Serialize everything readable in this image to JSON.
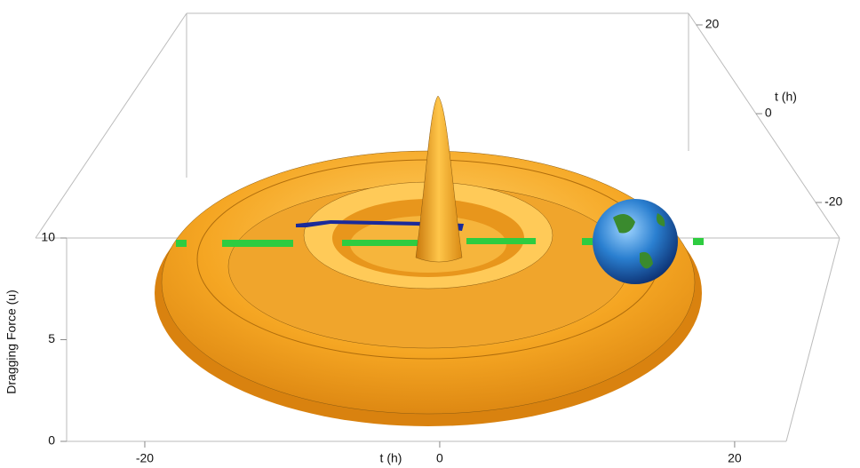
{
  "chart_data": {
    "type": "surface3d",
    "x_label": "t (h)",
    "y_label": "t (h)",
    "z_label": "Dragging Force (u)",
    "xlim": [
      -25.3,
      23.5
    ],
    "xticks": [
      -20,
      0,
      20
    ],
    "ylim": [
      -28,
      22.6
    ],
    "yticks": [
      -20,
      0,
      20
    ],
    "zlim": [
      0,
      10
    ],
    "zticks": [
      0,
      5,
      10
    ],
    "color": "#f2a12a"
  }
}
